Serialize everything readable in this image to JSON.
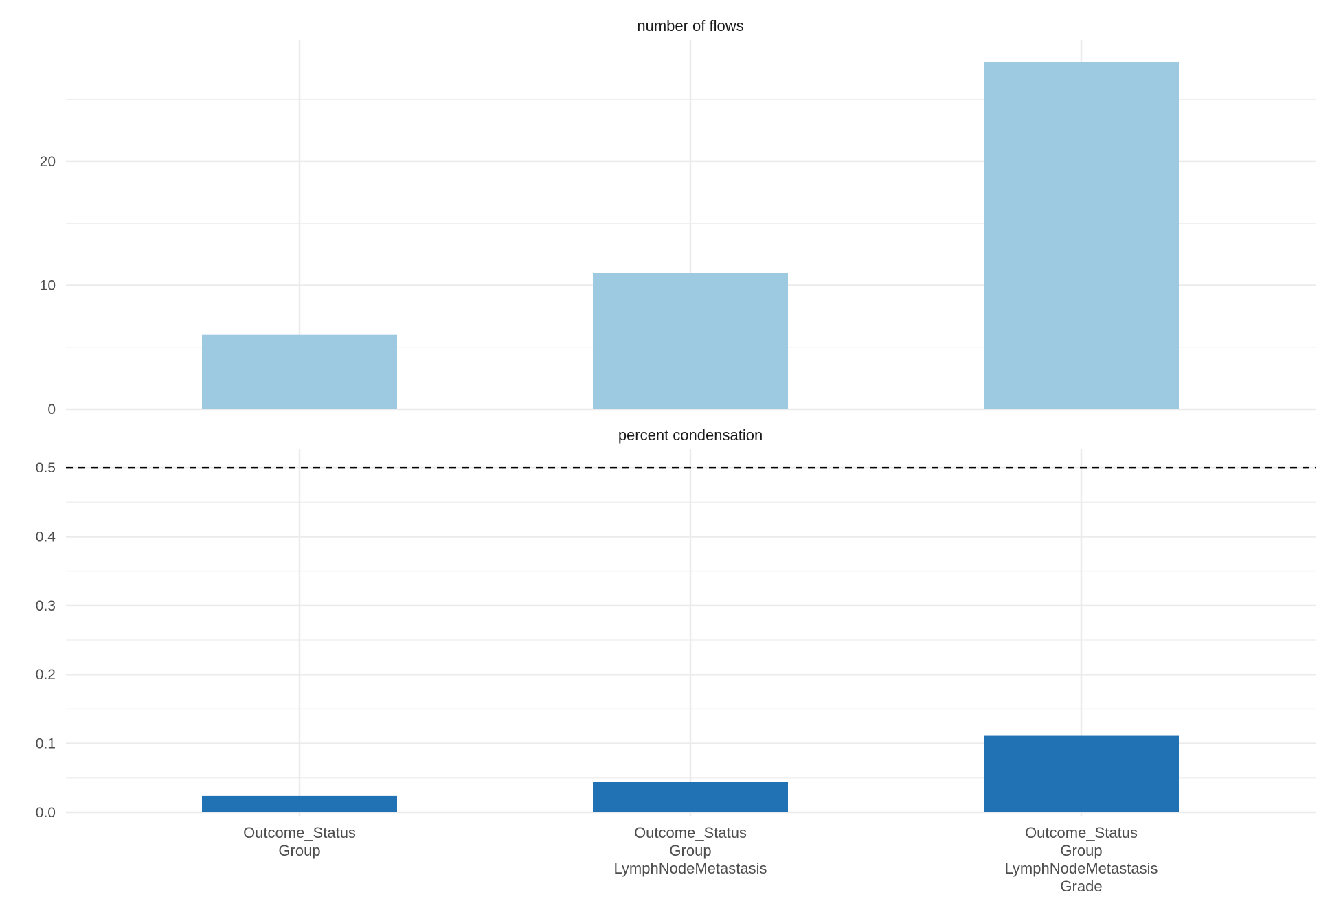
{
  "chart_data": [
    {
      "type": "bar",
      "title": "number of flows",
      "categories": [
        [
          "Outcome_Status",
          "Group"
        ],
        [
          "Outcome_Status",
          "Group",
          "LymphNodeMetastasis"
        ],
        [
          "Outcome_Status",
          "Group",
          "LymphNodeMetastasis",
          "Grade"
        ]
      ],
      "values": [
        6,
        11,
        28
      ],
      "ylim": [
        0,
        29.8
      ],
      "yticks": [
        0,
        10,
        20
      ],
      "ytick_labels": [
        "0",
        "10",
        "20"
      ],
      "color": "#9ecae1",
      "grid": true,
      "show_x_tick_labels": false
    },
    {
      "type": "bar",
      "title": "percent condensation",
      "categories": [
        [
          "Outcome_Status",
          "Group"
        ],
        [
          "Outcome_Status",
          "Group",
          "LymphNodeMetastasis"
        ],
        [
          "Outcome_Status",
          "Group",
          "LymphNodeMetastasis",
          "Grade"
        ]
      ],
      "values": [
        0.024,
        0.044,
        0.112
      ],
      "ylim": [
        -0.005,
        0.527
      ],
      "yticks": [
        0.0,
        0.1,
        0.2,
        0.3,
        0.4,
        0.5
      ],
      "ytick_labels": [
        "0.0",
        "0.1",
        "0.2",
        "0.3",
        "0.4",
        "0.5"
      ],
      "color": "#2171b5",
      "reference_line": {
        "y": 0.5,
        "style": "dashed",
        "color": "#000000"
      },
      "grid": true,
      "show_x_tick_labels": true
    }
  ]
}
